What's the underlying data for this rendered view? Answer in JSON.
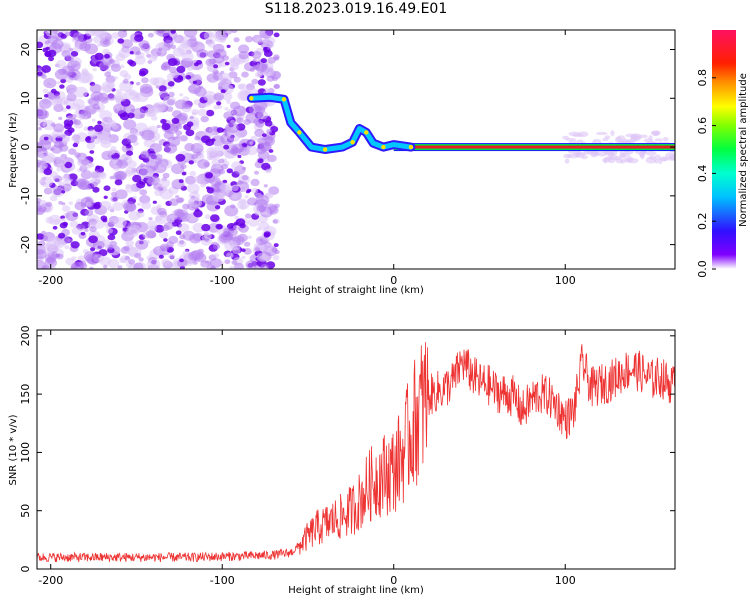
{
  "title": "S118.2023.019.16.49.E01",
  "chart_data": [
    {
      "type": "heatmap",
      "xlabel": "Height of straight line (km)",
      "ylabel": "Frequency (Hz)",
      "xlim": [
        -208,
        164
      ],
      "ylim": [
        -25,
        24
      ],
      "x_ticks": [
        -200,
        -100,
        0,
        100
      ],
      "y_ticks": [
        20,
        10,
        0,
        -10,
        -20
      ],
      "colorbar": {
        "label": "Normalized spectral amplitude",
        "range": [
          0.0,
          1.0
        ],
        "ticks": [
          0.0,
          0.2,
          0.4,
          0.6,
          0.8
        ]
      },
      "features": {
        "noise_region_x": [
          -208,
          -68
        ],
        "ridge": [
          {
            "x": -83,
            "y": 10
          },
          {
            "x": -72,
            "y": 10.2
          },
          {
            "x": -64,
            "y": 9.8
          },
          {
            "x": -60,
            "y": 5
          },
          {
            "x": -55,
            "y": 3
          },
          {
            "x": -48,
            "y": 0
          },
          {
            "x": -40,
            "y": -0.5
          },
          {
            "x": -30,
            "y": 0
          },
          {
            "x": -24,
            "y": 1
          },
          {
            "x": -20,
            "y": 3.8
          },
          {
            "x": -16,
            "y": 3
          },
          {
            "x": -12,
            "y": 0.8
          },
          {
            "x": -6,
            "y": 0
          },
          {
            "x": 0,
            "y": 0.5
          },
          {
            "x": 10,
            "y": 0
          }
        ],
        "steady_line": {
          "x_start": 0,
          "x_end": 164,
          "y": 0
        }
      }
    },
    {
      "type": "line",
      "xlabel": "Height of straight line (km)",
      "ylabel": "SNR (10 * v/v)",
      "xlim": [
        -208,
        164
      ],
      "ylim": [
        0,
        205
      ],
      "x_ticks": [
        -200,
        -100,
        0,
        100
      ],
      "y_ticks": [
        0,
        50,
        100,
        150,
        200
      ],
      "color": "#ee3333",
      "series": [
        {
          "x": [
            -208,
            -180,
            -150,
            -120,
            -90,
            -70,
            -60,
            -55,
            -50,
            -45,
            -40,
            -35,
            -30,
            -25,
            -20,
            -15,
            -10,
            -5,
            0,
            5,
            10,
            15,
            20,
            25,
            30,
            35,
            40,
            45,
            50,
            55,
            60,
            65,
            70,
            75,
            80,
            85,
            90,
            95,
            100,
            105,
            110,
            115,
            120,
            125,
            130,
            135,
            140,
            145,
            150,
            155,
            160,
            164
          ],
          "y": [
            10,
            10,
            10,
            10,
            11,
            12,
            14,
            20,
            28,
            35,
            38,
            42,
            45,
            50,
            58,
            70,
            78,
            82,
            85,
            98,
            118,
            135,
            148,
            152,
            155,
            162,
            178,
            168,
            160,
            158,
            152,
            150,
            148,
            135,
            145,
            150,
            148,
            140,
            128,
            135,
            178,
            155,
            158,
            160,
            165,
            170,
            172,
            168,
            162,
            165,
            160,
            157
          ]
        }
      ]
    }
  ]
}
